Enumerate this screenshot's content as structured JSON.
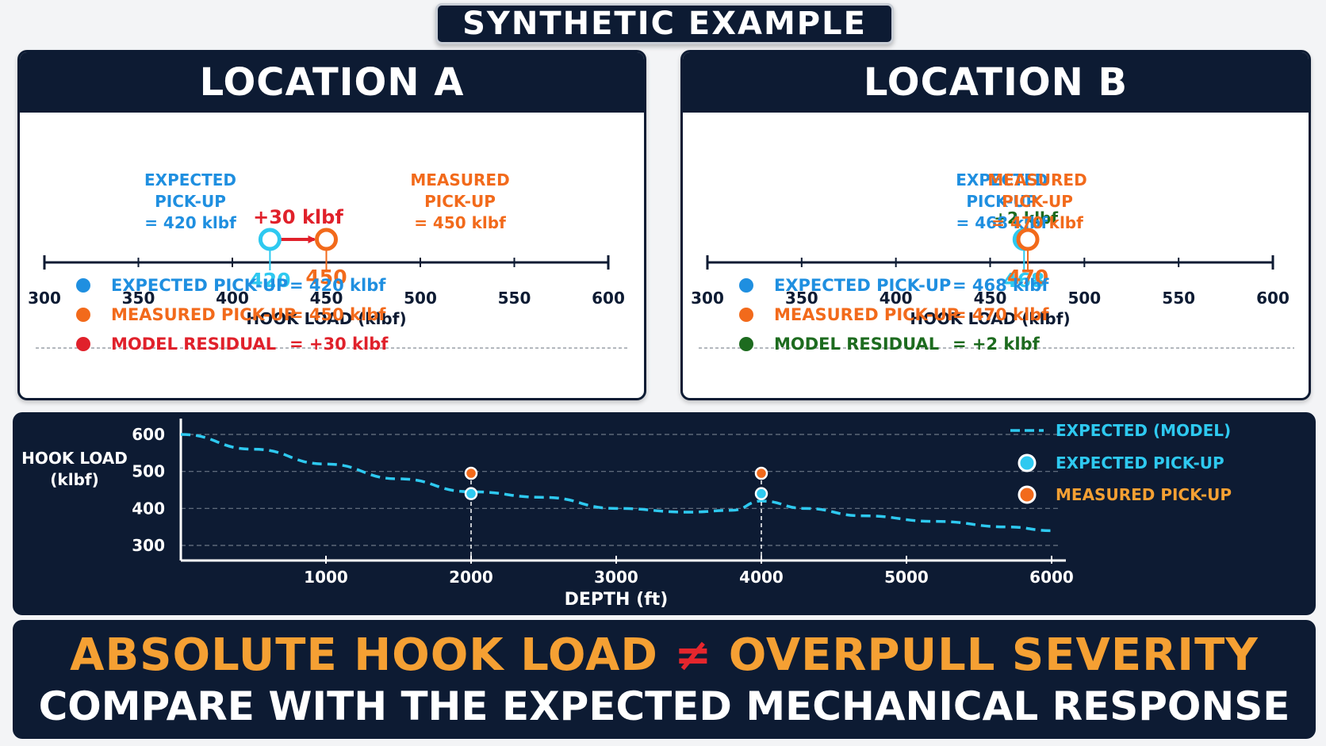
{
  "badge": "SYNTHETIC EXAMPLE",
  "locations": [
    {
      "title": "LOCATION A",
      "expected_label": [
        "EXPECTED",
        "PICK-UP",
        "= 420 klbf"
      ],
      "measured_label": [
        "MEASURED",
        "PICK-UP",
        "= 450 klbf"
      ],
      "delta_label": "+30 klbf",
      "expected_value": 420,
      "measured_value": 450,
      "axis": {
        "min": 300,
        "max": 600,
        "ticks": [
          "300",
          "350",
          "400",
          "450",
          "500",
          "550",
          "600"
        ],
        "label": "HOOK LOAD (klbf)"
      },
      "legend": [
        {
          "name": "EXPECTED PICK-UP",
          "value": "= 420 klbf",
          "color": "#1f8fe0"
        },
        {
          "name": "MEASURED PICK-UP",
          "value": "= 450 klbf",
          "color": "#f26a1b"
        },
        {
          "name": "MODEL RESIDUAL",
          "value": "= +30 klbf",
          "color": "#e0212b"
        }
      ],
      "arrow_color": "#e0212b"
    },
    {
      "title": "LOCATION B",
      "expected_label": [
        "EXPECTED",
        "PICK-UP",
        "= 468 klbf"
      ],
      "measured_label": [
        "MEASURED",
        "PICK-UP",
        "= 470 klbf"
      ],
      "delta_label": "+2 klbf",
      "expected_value": 468,
      "measured_value": 470,
      "axis": {
        "min": 300,
        "max": 600,
        "ticks": [
          "300",
          "350",
          "400",
          "450",
          "500",
          "550",
          "600"
        ],
        "label": "HOOK LOAD (klbf)"
      },
      "legend": [
        {
          "name": "EXPECTED PICK-UP",
          "value": "= 468 klbf",
          "color": "#1f8fe0"
        },
        {
          "name": "MEASURED PICK-UP",
          "value": "= 470 klbf",
          "color": "#f26a1b"
        },
        {
          "name": "MODEL RESIDUAL",
          "value": "= +2 klbf",
          "color": "#1d6b1f"
        }
      ],
      "arrow_color": "#1d6b1f"
    }
  ],
  "colors": {
    "expected": "#2ec9f0",
    "measured": "#f26a1b",
    "navy": "#0d1b33",
    "orange_text": "#f5a033"
  },
  "chart_data": {
    "type": "line",
    "title": "",
    "xlabel": "DEPTH (ft)",
    "ylabel": "HOOK LOAD (klbf)",
    "xlim": [
      0,
      6000
    ],
    "ylim": [
      300,
      600
    ],
    "xticks": [
      1000,
      2000,
      3000,
      4000,
      5000,
      6000
    ],
    "yticks": [
      300,
      400,
      500,
      600
    ],
    "grid": true,
    "legend_position": "right",
    "series": [
      {
        "name": "EXPECTED (MODEL)",
        "style": "dashed",
        "color": "#2ec9f0",
        "x": [
          0,
          500,
          1000,
          1500,
          2000,
          2500,
          3000,
          3500,
          3800,
          4000,
          4300,
          4700,
          5200,
          5700,
          6000
        ],
        "y": [
          600,
          560,
          520,
          480,
          445,
          430,
          400,
          390,
          395,
          420,
          400,
          380,
          365,
          350,
          340
        ]
      },
      {
        "name": "EXPECTED PICK-UP",
        "style": "marker",
        "color": "#2ec9f0",
        "x": [
          2000,
          4000
        ],
        "y": [
          440,
          440
        ]
      },
      {
        "name": "MEASURED PICK-UP",
        "style": "marker",
        "color": "#f26a1b",
        "x": [
          2000,
          4000
        ],
        "y": [
          495,
          495
        ]
      }
    ]
  },
  "bottom": {
    "line1_left": "ABSOLUTE HOOK LOAD",
    "line1_symbol": "≠",
    "line1_right": "OVERPULL SEVERITY",
    "line2": "COMPARE WITH THE EXPECTED MECHANICAL RESPONSE"
  }
}
